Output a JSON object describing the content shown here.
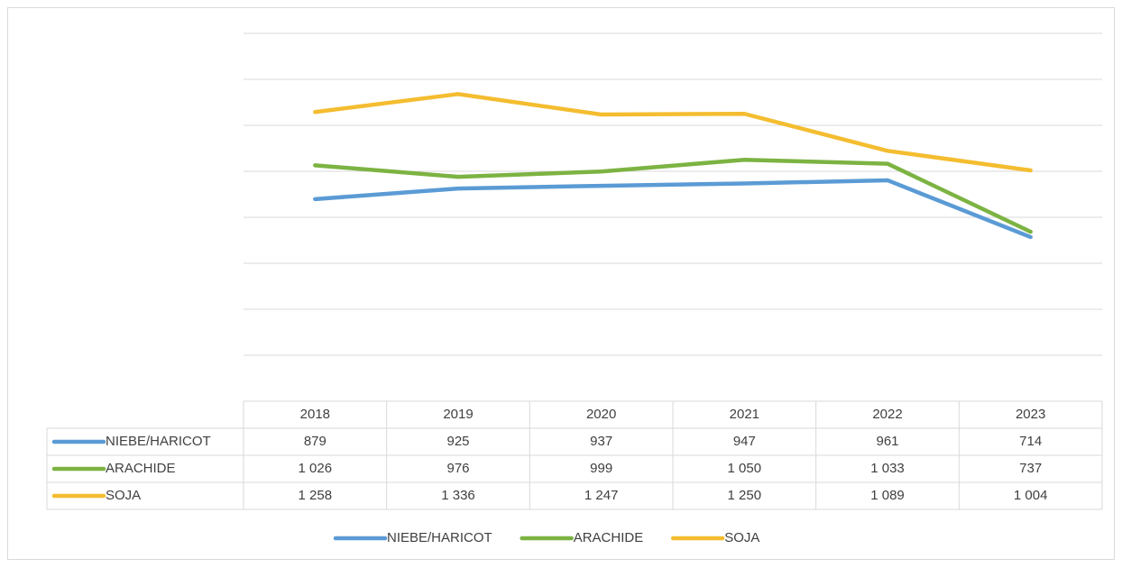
{
  "chart_data": {
    "type": "line",
    "categories": [
      "2018",
      "2019",
      "2020",
      "2021",
      "2022",
      "2023"
    ],
    "series": [
      {
        "name": "NIEBE/HARICOT",
        "color": "#5b9bd5",
        "values": [
          879,
          925,
          937,
          947,
          961,
          714
        ],
        "value_labels": [
          "879",
          "925",
          "937",
          "947",
          "961",
          "714"
        ]
      },
      {
        "name": "ARACHIDE",
        "color": "#7cb342",
        "values": [
          1026,
          976,
          999,
          1050,
          1033,
          737
        ],
        "value_labels": [
          "1 026",
          "976",
          "999",
          "1 050",
          "1 033",
          "737"
        ]
      },
      {
        "name": "SOJA",
        "color": "#f4bd30",
        "values": [
          1258,
          1336,
          1247,
          1250,
          1089,
          1004
        ],
        "value_labels": [
          "1 258",
          "1 336",
          "1 247",
          "1 250",
          "1 089",
          "1 004"
        ]
      }
    ],
    "ylim": [
      0,
      1600
    ],
    "yticks": [
      200,
      400,
      600,
      800,
      1000,
      1200,
      1400,
      1600
    ],
    "grid": true
  }
}
